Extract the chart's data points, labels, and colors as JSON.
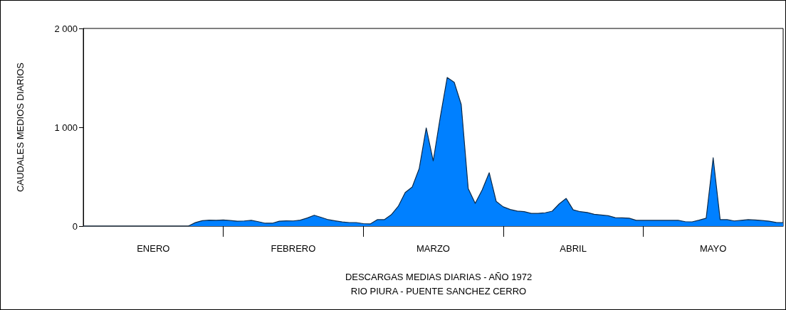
{
  "chart_data": {
    "type": "area",
    "title": "DESCARGAS MEDIAS DIARIAS - AÑO 1972",
    "subtitle": "RIO PIURA - PUENTE SANCHEZ CERRO",
    "ylabel": "CAUDALES MEDIOS DIARIOS",
    "categories": [
      null,
      null,
      null,
      null,
      null,
      null,
      null,
      null,
      null,
      null,
      "ENERO",
      null,
      null,
      null,
      null,
      null,
      null,
      null,
      null,
      null,
      null,
      null,
      null,
      null,
      null,
      null,
      null,
      null,
      null,
      null,
      "FEBRERO",
      null,
      null,
      null,
      null,
      null,
      null,
      null,
      null,
      null,
      null,
      null,
      null,
      null,
      null,
      null,
      null,
      null,
      null,
      null,
      "MARZO",
      null,
      null,
      null,
      null,
      null,
      null,
      null,
      null,
      null,
      null,
      null,
      null,
      null,
      null,
      null,
      null,
      null,
      null,
      null,
      "ABRIL",
      null,
      null,
      null,
      null,
      null,
      null,
      null,
      null,
      null,
      null,
      null,
      null,
      null,
      null,
      null,
      null,
      null,
      null,
      null,
      "MAYO",
      null,
      null,
      null,
      null,
      null,
      null,
      null,
      null,
      null,
      null
    ],
    "series": [
      {
        "color": "#0080ff",
        "values": [
          0,
          0,
          0,
          0,
          0,
          0,
          0,
          0,
          0,
          0,
          0,
          0,
          0,
          0,
          0,
          0,
          35,
          55,
          60,
          59,
          62,
          56,
          50,
          52,
          58,
          45,
          29,
          29,
          50,
          53,
          52,
          60,
          82,
          110,
          88,
          65,
          53,
          42,
          36,
          36,
          25,
          22,
          65,
          65,
          115,
          200,
          340,
          396,
          583,
          993,
          660,
          1100,
          1504,
          1455,
          1230,
          380,
          230,
          367,
          540,
          250,
          195,
          168,
          152,
          146,
          129,
          129,
          135,
          151,
          225,
          280,
          165,
          146,
          138,
          120,
          112,
          105,
          86,
          83,
          80,
          58,
          58,
          58,
          58,
          58,
          58,
          58,
          45,
          43,
          60,
          80,
          691,
          65,
          65,
          52,
          58,
          65,
          62,
          56,
          50,
          37,
          35
        ]
      }
    ],
    "ylim": [
      0,
      2000
    ],
    "yticks": [
      {
        "value": 0,
        "label": "0"
      },
      {
        "value": 1000,
        "label": "1 000"
      },
      {
        "value": 2000,
        "label": "2 000"
      }
    ],
    "grid": false,
    "marker": "none",
    "line_style": "solid"
  }
}
